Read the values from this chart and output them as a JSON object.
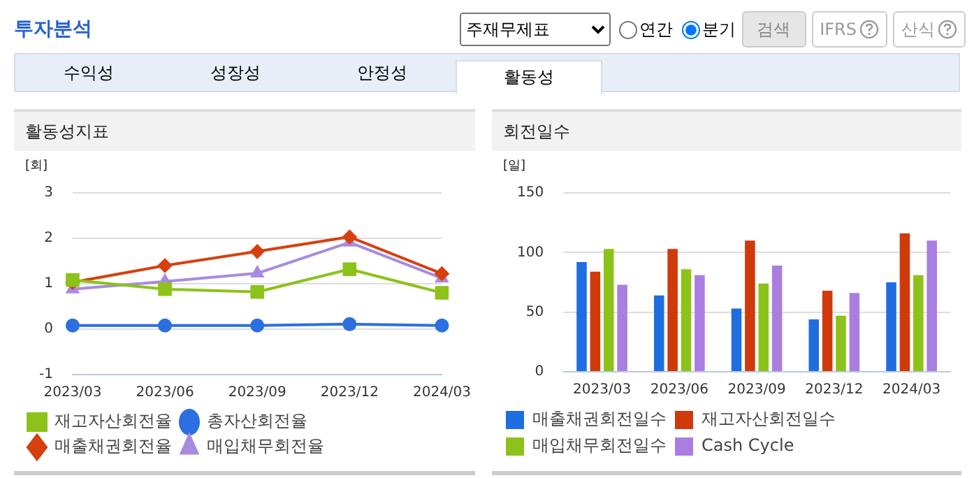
{
  "chart_data": [
    {
      "type": "other",
      "title": "투자분석",
      "annotations": [
        "주재무제표",
        "연간",
        "분기",
        "검색",
        "IFRS",
        "산식",
        "수익성",
        "성장성",
        "안정성",
        "활동성"
      ]
    },
    {
      "type": "line",
      "subtitle": "활동성지표",
      "ylabel": "[회]",
      "categories": [
        "2023/03",
        "2023/06",
        "2023/09",
        "2023/12",
        "2024/03"
      ],
      "ylim": [
        -1,
        3
      ],
      "yticks": [
        -1,
        0,
        1,
        2,
        3
      ],
      "grid": "y",
      "legend": "bottom",
      "series": [
        {
          "name": "총자산회전율",
          "color": "#2c6fe0",
          "marker": "circle",
          "values": [
            0.08,
            0.08,
            0.08,
            0.11,
            0.08
          ]
        },
        {
          "name": "매출채권회전율",
          "color": "#d6400e",
          "marker": "diamond",
          "values": [
            1.03,
            1.4,
            1.71,
            2.03,
            1.22
          ]
        },
        {
          "name": "재고자산회전율",
          "color": "#8cc21a",
          "marker": "square",
          "values": [
            1.08,
            0.88,
            0.82,
            1.32,
            0.8
          ]
        },
        {
          "name": "매입채무회전율",
          "color": "#a88ae0",
          "marker": "triangle",
          "values": [
            0.88,
            1.05,
            1.23,
            1.91,
            1.12
          ]
        }
      ]
    },
    {
      "type": "bar",
      "subtitle": "회전일수",
      "ylabel": "[일]",
      "categories": [
        "2023/03",
        "2023/06",
        "2023/09",
        "2023/12",
        "2024/03"
      ],
      "ylim": [
        0,
        150
      ],
      "yticks": [
        0,
        50,
        100,
        150
      ],
      "grid": "y",
      "legend": "bottom",
      "series": [
        {
          "name": "매출채권회전일수",
          "color": "#1f6ee0",
          "values": [
            92,
            64,
            53,
            44,
            75
          ]
        },
        {
          "name": "재고자산회전일수",
          "color": "#d03a0a",
          "values": [
            84,
            103,
            110,
            68,
            116
          ]
        },
        {
          "name": "매입채무회전일수",
          "color": "#8cc21a",
          "values": [
            103,
            86,
            74,
            47,
            81
          ]
        },
        {
          "name": "Cash Cycle",
          "color": "#a97ee0",
          "values": [
            73,
            81,
            89,
            66,
            110
          ]
        }
      ]
    }
  ]
}
